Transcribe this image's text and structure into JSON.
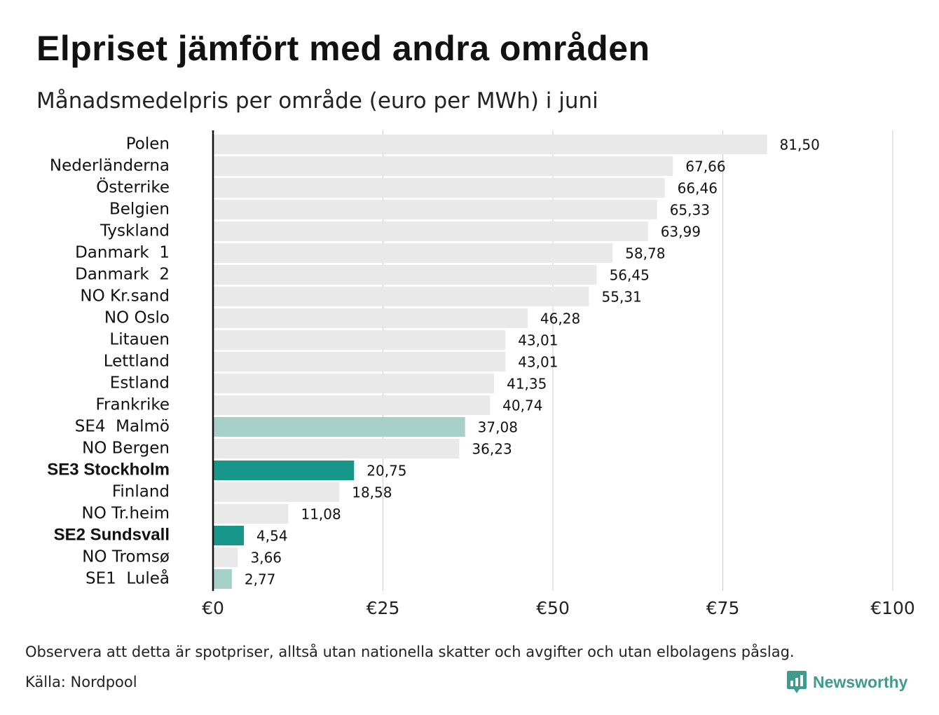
{
  "title": "Elpriset jämfört med andra områden",
  "subtitle": "Månadsmedelpris per område (euro per MWh) i juni",
  "footnote": "Observera att detta är spotpriser, alltså utan nationella skatter och avgifter och utan elbolagens påslag.",
  "source": "Källa: Nordpool",
  "brand": {
    "name": "Newsworthy",
    "icon": "newsworthy-logo-icon"
  },
  "colors": {
    "default_bar": "#e9e9e9",
    "highlight_bar": "#16978a",
    "light_highlight_bar": "#a7d0c9",
    "gridline": "#cccccc",
    "axis": "#111111",
    "brand": "#3f9b8e"
  },
  "chart_data": {
    "type": "bar",
    "orientation": "horizontal",
    "title": "Elpriset jämfört med andra områden",
    "subtitle": "Månadsmedelpris per område (euro per MWh) i juni",
    "xlim": [
      0,
      100
    ],
    "x_ticks": [
      0,
      25,
      50,
      75,
      100
    ],
    "x_tick_labels": [
      "€0",
      "€25",
      "€50",
      "€75",
      "€100"
    ],
    "grid": "vertical",
    "categories": [
      "Polen",
      "Nederländerna",
      "Österrike",
      "Belgien",
      "Tyskland",
      "Danmark  1",
      "Danmark  2",
      "NO Kr.sand",
      "NO Oslo",
      "Litauen",
      "Lettland",
      "Estland",
      "Frankrike",
      "SE4  Malmö",
      "NO Bergen",
      "SE3 Stockholm",
      "Finland",
      "NO Tr.heim",
      "SE2 Sundsvall",
      "NO Tromsø",
      "SE1  Luleå"
    ],
    "values": [
      81.5,
      67.66,
      66.46,
      65.33,
      63.99,
      58.78,
      56.45,
      55.31,
      46.28,
      43.01,
      43.01,
      41.35,
      40.74,
      37.08,
      36.23,
      20.75,
      18.58,
      11.08,
      4.54,
      3.66,
      2.77
    ],
    "value_labels": [
      "81,50",
      "67,66",
      "66,46",
      "65,33",
      "63,99",
      "58,78",
      "56,45",
      "55,31",
      "46,28",
      "43,01",
      "43,01",
      "41,35",
      "40,74",
      "37,08",
      "36,23",
      "20,75",
      "18,58",
      "11,08",
      "4,54",
      "3,66",
      "2,77"
    ],
    "bar_styles": [
      "default",
      "default",
      "default",
      "default",
      "default",
      "default",
      "default",
      "default",
      "default",
      "default",
      "default",
      "default",
      "default",
      "light-highlight",
      "default",
      "highlight",
      "default",
      "default",
      "highlight",
      "default",
      "light-highlight"
    ],
    "bold_labels": [
      "SE3 Stockholm",
      "SE2 Sundsvall"
    ]
  }
}
